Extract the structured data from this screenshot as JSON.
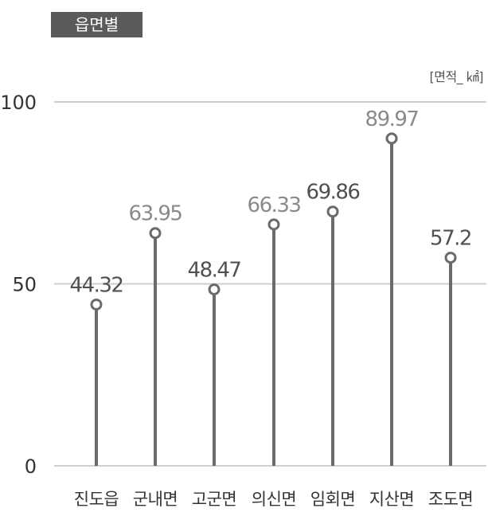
{
  "header": {
    "badge_label": "읍면별",
    "unit_label": "[면적_ ㎢]"
  },
  "chart_data": {
    "type": "lollipop",
    "categories": [
      "진도읍",
      "군내면",
      "고군면",
      "의신면",
      "임회면",
      "지산면",
      "조도면"
    ],
    "values": [
      44.32,
      63.95,
      48.47,
      66.33,
      69.86,
      89.97,
      57.2
    ],
    "value_labels": [
      "44.32",
      "63.95",
      "48.47",
      "66.33",
      "69.86",
      "89.97",
      "57.2"
    ],
    "ylim": [
      0,
      100
    ],
    "yticks": [
      0,
      50,
      100
    ],
    "grid": true,
    "colors": {
      "stem": "#6b6b6b",
      "marker_fill": "#ffffff",
      "grid": "#cfcfcf",
      "label_dark": "#505050",
      "label_light": "#8a8a8a"
    },
    "label_tone": [
      "dark",
      "light",
      "dark",
      "light",
      "dark",
      "light",
      "dark"
    ]
  }
}
